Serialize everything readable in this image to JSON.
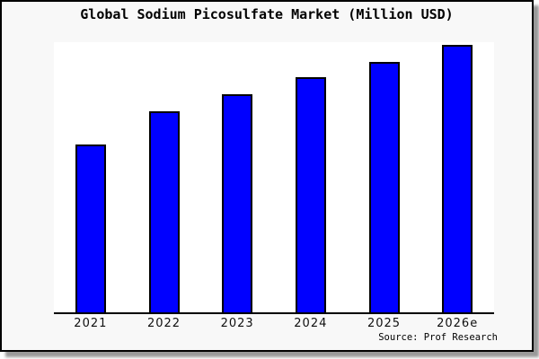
{
  "window": {
    "background_color": "#f8f8f8",
    "plot_background_color": "#ffffff",
    "frame_border_color": "#000000",
    "shadow_color": "#999999"
  },
  "chart_data": {
    "type": "bar",
    "title": "Global Sodium Picosulfate Market (Million USD)",
    "categories": [
      "2021",
      "2022",
      "2023",
      "2024",
      "2025",
      "2026e"
    ],
    "values_relative_pct_of_max": [
      62.6,
      75.1,
      81.4,
      87.8,
      93.6,
      100
    ],
    "values_note": "No y-axis, gridlines or value labels are shown in the image; values are estimated bar heights as a percentage of the tallest bar (2026e = 100).",
    "xlabel": "",
    "ylabel": "",
    "bar_color": "#0000ff",
    "bar_border_color": "#000000",
    "axis_color": "#000000",
    "grid": false,
    "legend": false,
    "y_axis_visible": false,
    "source": "Source: Prof Research"
  }
}
